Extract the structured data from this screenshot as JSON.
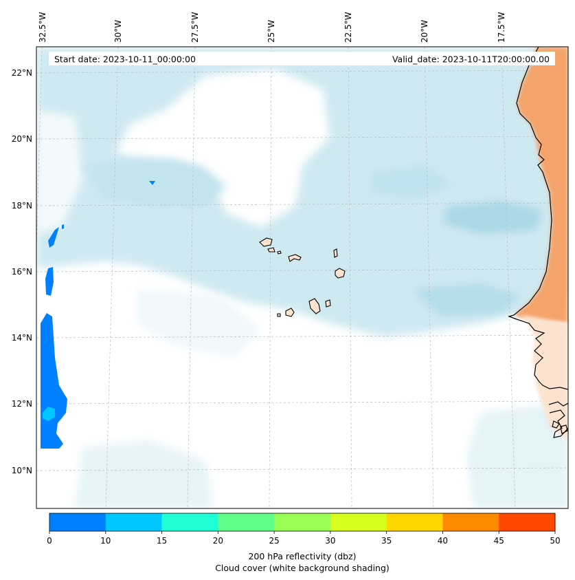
{
  "header": {
    "start_date": "Start date: 2023-10-11_00:00:00",
    "valid_date": "Valid_date: 2023-10-11T20:00:00.00"
  },
  "longitude_labels": [
    "32.5°W",
    "30°W",
    "27.5°W",
    "25°W",
    "22.5°W",
    "20°W",
    "17.5°W"
  ],
  "latitude_labels": [
    "22°N",
    "20°N",
    "18°N",
    "16°N",
    "14°N",
    "12°N",
    "10°N"
  ],
  "colorbar": {
    "colors": [
      "#0080ff",
      "#00c8ff",
      "#1effd6",
      "#60ff8a",
      "#99ff55",
      "#d6ff1e",
      "#ffd600",
      "#ff8a00",
      "#ff4800"
    ],
    "ticks": [
      "0",
      "10",
      "15",
      "20",
      "25",
      "30",
      "35",
      "40",
      "45",
      "50"
    ],
    "label_line1": "200 hPa reflectivity (dbz)",
    "label_line2": "Cloud cover (white background shading)"
  },
  "colors": {
    "cloud_light": "#e2f2f7",
    "cloud_mid": "#c6e6ef",
    "cloud_dark": "#a9d8e6",
    "land_high": "#f4a46a",
    "land_low": "#fbe3cf"
  }
}
